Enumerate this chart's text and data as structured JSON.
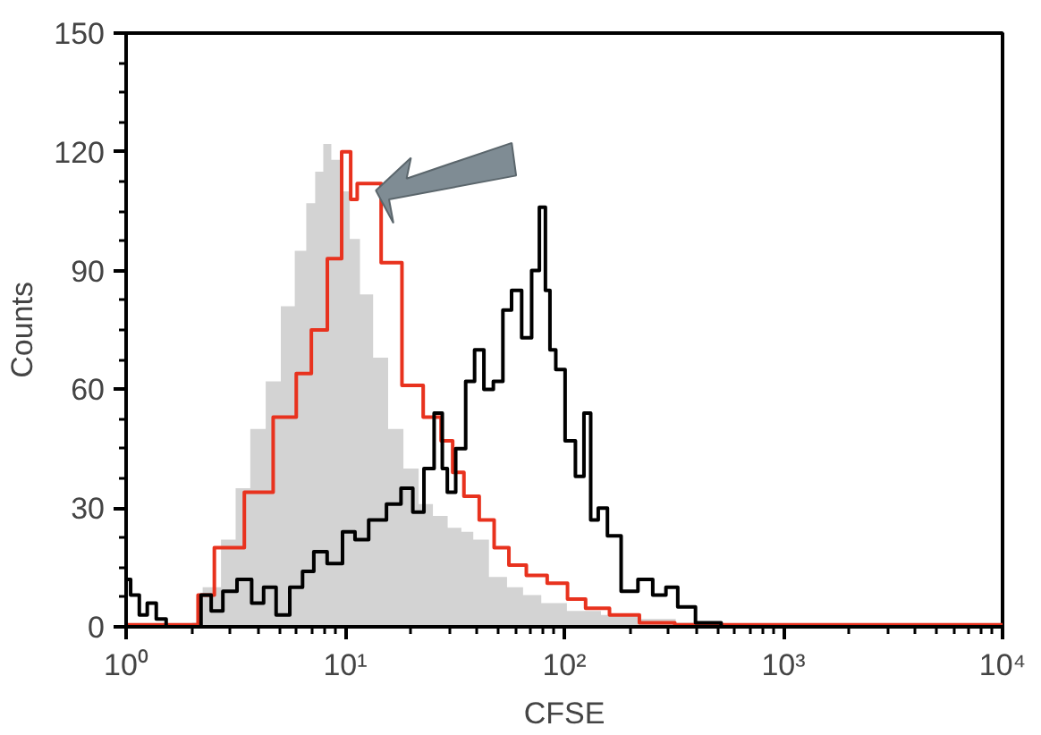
{
  "chart_data": {
    "type": "step",
    "xlabel": "CFSE",
    "ylabel": "Counts",
    "log": "x",
    "xlim": [
      1,
      10000
    ],
    "xticks": [
      {
        "value": 1,
        "label": "10⁰"
      },
      {
        "value": 10,
        "label": "10¹"
      },
      {
        "value": 100,
        "label": "10²"
      },
      {
        "value": 1000,
        "label": "10³"
      },
      {
        "value": 10000,
        "label": "10⁴"
      }
    ],
    "ylim": [
      0,
      150
    ],
    "yticks": [
      0,
      30,
      60,
      90,
      120,
      150
    ],
    "grid": false,
    "marker": "none",
    "line_style": "solid",
    "series": [
      {
        "type": "area",
        "color": "#d3d3d3",
        "x": [
          2,
          2.5,
          2.94,
          3.4,
          4,
          4.7,
          5.5,
          6.3,
          7,
          7.6,
          8.3,
          9,
          10,
          11,
          12.4,
          14.5,
          17,
          20,
          23.4,
          27,
          31.9,
          36,
          41,
          50,
          60,
          70,
          88,
          120,
          180,
          260,
          400,
          600
        ],
        "values": [
          1,
          10,
          22,
          35,
          50,
          62,
          81,
          95,
          107,
          115,
          122,
          118,
          110,
          98,
          84,
          68,
          50,
          40,
          31,
          28,
          25,
          24,
          22,
          12.6,
          10,
          8,
          6,
          4,
          3,
          2,
          1,
          0
        ]
      },
      {
        "color": "#e8321e",
        "x": [
          1,
          2.13,
          2.13,
          3,
          4,
          5.5,
          6.5,
          7.55,
          9.1,
          10.2,
          11,
          11.7,
          13.3,
          16,
          20.6,
          25,
          30,
          31.9,
          38,
          44,
          52,
          60,
          75,
          93,
          115,
          136,
          190,
          255,
          400,
          1000,
          10000
        ],
        "values": [
          0.5,
          0.5,
          8,
          20,
          34,
          53,
          64,
          75,
          93,
          120,
          108,
          112,
          112,
          92,
          61,
          53,
          47,
          39,
          33,
          27,
          20,
          15.6,
          13,
          11,
          7,
          4.7,
          3,
          1,
          0.5,
          0.5,
          0.5
        ]
      },
      {
        "color": "#000000",
        "x": [
          1,
          1.1,
          1.2,
          1.3,
          1.45,
          1.6,
          2.1,
          2.3,
          2.6,
          2.94,
          3.5,
          4,
          4.5,
          5.2,
          6,
          6.8,
          7.6,
          9,
          10.5,
          11.7,
          14,
          17,
          19,
          21.8,
          24,
          27,
          28.5,
          30,
          34,
          37,
          41,
          45,
          50,
          55,
          60,
          68,
          74,
          80,
          84,
          88,
          95,
          107,
          118,
          128,
          136,
          150,
          165,
          200,
          235,
          273,
          310,
          350,
          450,
          600,
          10000
        ],
        "values": [
          12,
          8,
          3,
          6,
          2,
          0,
          0,
          8,
          4,
          9,
          12,
          6,
          10,
          3,
          10,
          14,
          19,
          16,
          24,
          22,
          27,
          31,
          35,
          29,
          40,
          54,
          40,
          34,
          45,
          62,
          70,
          60,
          62,
          80,
          85,
          73,
          90,
          106,
          85,
          70,
          65,
          47,
          38,
          54,
          27,
          30,
          23,
          9,
          12,
          8,
          10,
          5,
          1,
          0,
          0
        ]
      }
    ]
  }
}
